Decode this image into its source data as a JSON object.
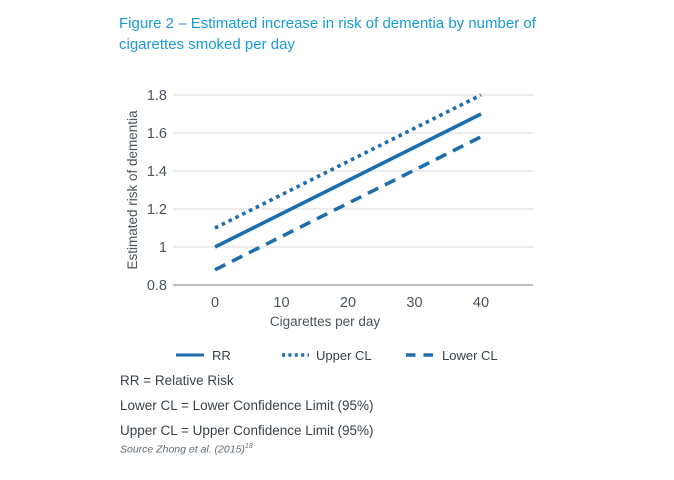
{
  "title": "Figure 2 – Estimated increase in risk of dementia by number of cigarettes smoked per day",
  "colors": {
    "title": "#189ad6",
    "series_line": "#1e6dad",
    "axis_text": "#4a545e",
    "gridline": "#d8d8d8",
    "axis_line": "#8d949c",
    "footnote_text": "#39424a",
    "source_text": "#5f6a72"
  },
  "chart_data": {
    "type": "line",
    "xlabel": "Cigarettes per day",
    "ylabel": "Estimated risk of dementia",
    "x": [
      0,
      40
    ],
    "xlim": [
      0,
      40
    ],
    "ylim": [
      0.8,
      1.8
    ],
    "xticks": {
      "values": [
        0,
        10,
        20,
        30,
        40
      ],
      "labels": [
        "0",
        "10",
        "20",
        "30",
        "40"
      ]
    },
    "yticks": {
      "values": [
        0.8,
        1.0,
        1.2,
        1.4,
        1.6,
        1.8
      ],
      "labels": [
        "0.8",
        "1",
        "1.2",
        "1.4",
        "1.6",
        "1.8"
      ]
    },
    "grid": "horizontal",
    "legend_position": "bottom",
    "series": [
      {
        "name": "RR",
        "style": "solid",
        "values": [
          1.0,
          1.7
        ]
      },
      {
        "name": "Upper CL",
        "style": "dotted",
        "values": [
          1.1,
          1.8
        ]
      },
      {
        "name": "Lower CL",
        "style": "dashed",
        "values": [
          0.88,
          1.58
        ]
      }
    ]
  },
  "footnotes": [
    "RR = Relative Risk",
    "Lower CL = Lower Confidence Limit (95%)",
    "Upper CL = Upper Confidence Limit (95%)"
  ],
  "source": {
    "label": "Source Zhong et al. (2015)",
    "superscript": "18"
  }
}
